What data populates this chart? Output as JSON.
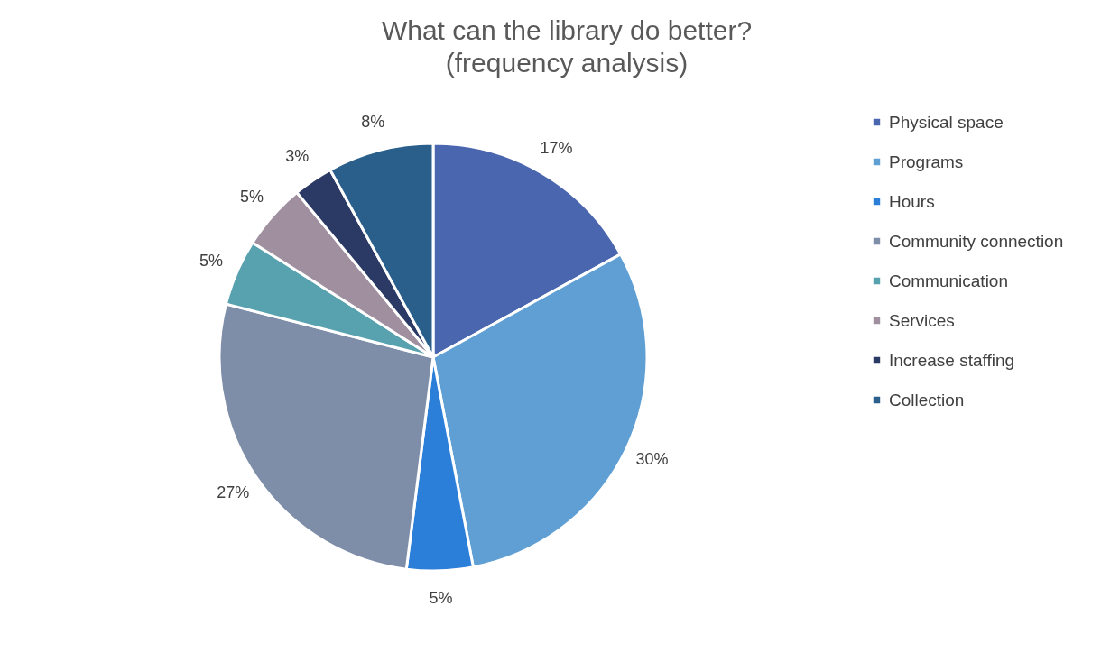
{
  "chart_data": {
    "type": "pie",
    "title": "What can the library do better?",
    "subtitle": "(frequency analysis)",
    "categories": [
      "Physical space",
      "Programs",
      "Hours",
      "Community connection",
      "Communication",
      "Services",
      "Increase staffing",
      "Collection"
    ],
    "values": [
      17,
      30,
      5,
      27,
      5,
      5,
      3,
      8
    ],
    "colors": [
      "#4a66ae",
      "#5f9fd3",
      "#2c7fd8",
      "#7f8ea8",
      "#58a1ae",
      "#9f8f9f",
      "#2b3a64",
      "#2a5f8c"
    ],
    "value_labels": [
      "17%",
      "30%",
      "5%",
      "27%",
      "5%",
      "5%",
      "3%",
      "8%"
    ],
    "legend": "right"
  }
}
